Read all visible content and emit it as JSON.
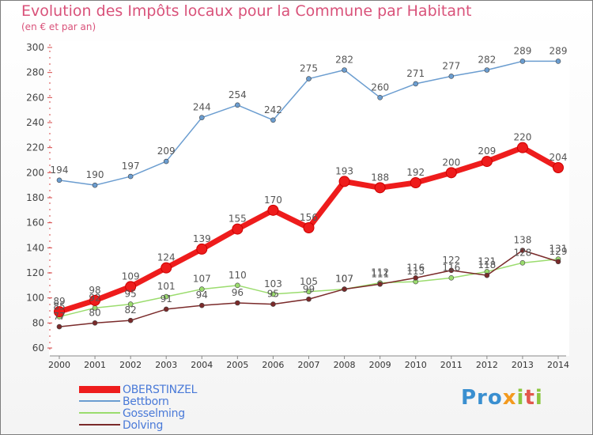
{
  "chart_data": {
    "type": "line",
    "title": "Evolution des Impôts locaux pour la Commune par Habitant",
    "subtitle": "(en € et par an)",
    "x": [
      "2000",
      "2001",
      "2002",
      "2003",
      "2004",
      "2005",
      "2006",
      "2007",
      "2008",
      "2009",
      "2010",
      "2011",
      "2012",
      "2013",
      "2014"
    ],
    "ylim": [
      60,
      300
    ],
    "yticks": [
      60,
      80,
      100,
      120,
      140,
      160,
      180,
      200,
      220,
      240,
      260,
      280,
      300
    ],
    "grid": false,
    "legend_position": "bottom-left",
    "series": [
      {
        "name": "OBERSTINZEL",
        "color": "#ee1c1c",
        "values": [
          89,
          98,
          109,
          124,
          139,
          155,
          170,
          156,
          193,
          188,
          192,
          200,
          209,
          220,
          204
        ]
      },
      {
        "name": "Bettborn",
        "color": "#6b9dd0",
        "values": [
          194,
          190,
          197,
          209,
          244,
          254,
          242,
          275,
          282,
          260,
          271,
          277,
          282,
          289,
          289
        ]
      },
      {
        "name": "Gosselming",
        "color": "#9bdc6e",
        "values": [
          85,
          92,
          95,
          101,
          107,
          110,
          103,
          105,
          107,
          112,
          113,
          116,
          121,
          128,
          131
        ]
      },
      {
        "name": "Dolving",
        "color": "#7a2a2a",
        "values": [
          77,
          80,
          82,
          91,
          94,
          96,
          95,
          99,
          107,
          111,
          116,
          122,
          118,
          138,
          129
        ]
      }
    ]
  },
  "logo": {
    "part1": "Pro",
    "part2": "x",
    "part3": "i",
    "part4": "t",
    "part5": "i"
  }
}
